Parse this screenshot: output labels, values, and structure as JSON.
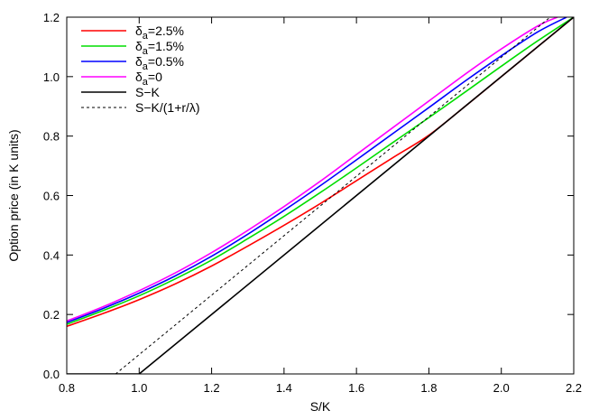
{
  "chart_data": {
    "type": "line",
    "xlabel": "S/K",
    "ylabel": "Option price (in K units)",
    "xlim": [
      0.8,
      2.2
    ],
    "ylim": [
      0.0,
      1.2
    ],
    "x_ticks": [
      "0.8",
      "1.0",
      "1.2",
      "1.4",
      "1.6",
      "1.8",
      "2.0",
      "2.2"
    ],
    "y_ticks": [
      "0.0",
      "0.2",
      "0.4",
      "0.6",
      "0.8",
      "1.0",
      "1.2"
    ],
    "grid": false,
    "legend_position": "top-left",
    "series": [
      {
        "name": "δa=2.5%",
        "legend_main": "δ",
        "legend_sub": "a",
        "legend_rest": "=2.5%",
        "color": "#ff0000",
        "dash": "solid",
        "x": [
          0.8,
          0.9,
          1.0,
          1.1,
          1.2,
          1.3,
          1.4,
          1.5,
          1.6,
          1.7,
          1.8,
          1.9,
          2.0,
          2.1,
          2.2
        ],
        "y": [
          0.16,
          0.203,
          0.25,
          0.303,
          0.363,
          0.43,
          0.5,
          0.573,
          0.65,
          0.727,
          0.803,
          0.9,
          1.0,
          1.1,
          1.2
        ]
      },
      {
        "name": "δa=1.5%",
        "legend_main": "δ",
        "legend_sub": "a",
        "legend_rest": "=1.5%",
        "color": "#00dd00",
        "dash": "solid",
        "x": [
          0.8,
          0.9,
          1.0,
          1.1,
          1.2,
          1.3,
          1.4,
          1.5,
          1.6,
          1.7,
          1.8,
          1.9,
          2.0,
          2.1,
          2.2
        ],
        "y": [
          0.167,
          0.213,
          0.263,
          0.32,
          0.383,
          0.455,
          0.53,
          0.61,
          0.693,
          0.778,
          0.862,
          0.948,
          1.035,
          1.12,
          1.2
        ]
      },
      {
        "name": "δa=0.5%",
        "legend_main": "δ",
        "legend_sub": "a",
        "legend_rest": "=0.5%",
        "color": "#0000ff",
        "dash": "solid",
        "x": [
          0.8,
          0.9,
          1.0,
          1.1,
          1.2,
          1.3,
          1.4,
          1.5,
          1.6,
          1.7,
          1.8,
          1.9,
          2.0,
          2.1,
          2.18
        ],
        "y": [
          0.173,
          0.22,
          0.272,
          0.33,
          0.396,
          0.47,
          0.55,
          0.633,
          0.72,
          0.808,
          0.896,
          0.985,
          1.07,
          1.15,
          1.2
        ]
      },
      {
        "name": "δa=0",
        "legend_main": "δ",
        "legend_sub": "a",
        "legend_rest": "=0",
        "color": "#ff00ff",
        "dash": "solid",
        "x": [
          0.8,
          0.9,
          1.0,
          1.1,
          1.2,
          1.3,
          1.4,
          1.5,
          1.6,
          1.7,
          1.8,
          1.9,
          2.0,
          2.1,
          2.155
        ],
        "y": [
          0.178,
          0.226,
          0.28,
          0.34,
          0.408,
          0.483,
          0.563,
          0.648,
          0.738,
          0.828,
          0.918,
          1.008,
          1.093,
          1.17,
          1.2
        ]
      },
      {
        "name": "S−K",
        "legend_main": "S−K",
        "legend_sub": "",
        "legend_rest": "",
        "color": "#000000",
        "dash": "solid",
        "x": [
          0.8,
          1.0,
          2.2
        ],
        "y": [
          0.0,
          0.0,
          1.2
        ]
      },
      {
        "name": "S−K/(1+r/λ)",
        "legend_main": "S−K/(1+r/λ)",
        "legend_sub": "",
        "legend_rest": "",
        "color": "#000000",
        "dash": "dashed",
        "x": [
          0.8,
          0.935,
          2.135
        ],
        "y": [
          0.0,
          0.0,
          1.2
        ]
      }
    ]
  }
}
